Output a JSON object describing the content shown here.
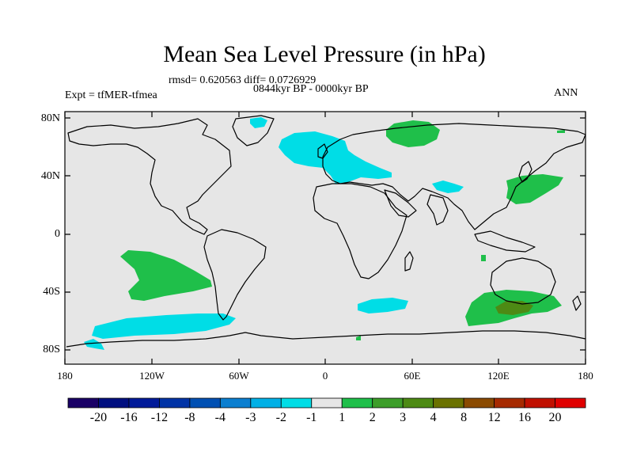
{
  "title": "Mean Sea Level Pressure (in hPa)",
  "stats_line": "rmsd= 0.620563 diff= 0.0726929",
  "period_label": "0844kyr BP - 0000kyr BP",
  "experiment_label": "Expt = tfMER-tfmea",
  "season_label": "ANN",
  "axes": {
    "lat_labels": [
      "80N",
      "40N",
      "0",
      "40S",
      "80S"
    ],
    "lon_labels": [
      "180",
      "120W",
      "60W",
      "0",
      "60E",
      "120E",
      "180"
    ]
  },
  "colorbar": {
    "labels": [
      "-20",
      "-16",
      "-12",
      "-8",
      "-4",
      "-3",
      "-2",
      "-1",
      "1",
      "2",
      "3",
      "4",
      "8",
      "12",
      "16",
      "20"
    ],
    "colors": [
      "#1a0066",
      "#000f80",
      "#001a99",
      "#0033a6",
      "#0050b3",
      "#0b7fd0",
      "#00b0e6",
      "#00dde6",
      "#e6e6e6",
      "#1fbf4a",
      "#3d9e2a",
      "#4d8a14",
      "#6b7200",
      "#8a4a00",
      "#a62a00",
      "#c01000",
      "#e00000"
    ]
  },
  "map_colors": {
    "ocean_land_bg": "#e6e6e6",
    "negative_light": "#00dde6",
    "positive_light": "#1fbf4a",
    "positive_mid": "#4d8a14"
  }
}
